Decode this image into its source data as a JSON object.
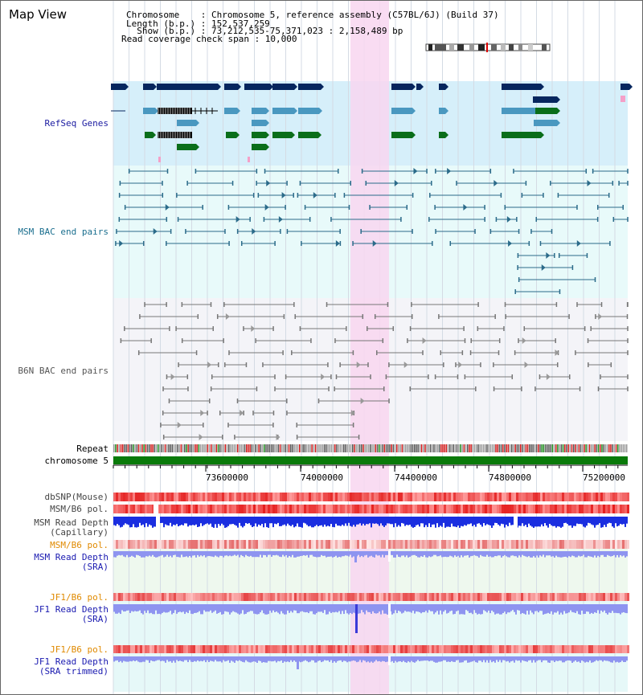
{
  "view": {
    "title": "Map View"
  },
  "info": {
    "chromosome": "Chromosome    : Chromosome 5, reference assembly (C57BL/6J) (Build 37)",
    "length": "Length (b.p.) : 152,537,259",
    "show": "  Show (b.p.) : 73,212,535-75,371,023 : 2,158,489 bp",
    "coverage": "Read coverage check span : 10,000"
  },
  "tracks": {
    "refseq": "RefSeq Genes",
    "msm_bac": "MSM BAC end pairs",
    "b6n_bac": "B6N BAC end pairs",
    "repeat": "Repeat",
    "chromosome": "chromosome 5",
    "dbsnp": "dbSNP(Mouse)",
    "msm_b6_pol": "MSM/B6 pol.",
    "msm_depth_cap1": "MSM Read Depth",
    "msm_depth_cap2": "(Capillary)",
    "msm_b6_pol2": "MSM/B6 pol.",
    "msm_depth_sra1": "MSM Read Depth",
    "msm_depth_sra2": "(SRA)",
    "jf1_pol": "JF1/B6 pol.",
    "jf1_depth1": "JF1 Read Depth",
    "jf1_depth2": "(SRA)",
    "jf1_pol2": "JF1/B6 pol.",
    "jf1_trim1": "JF1 Read Depth",
    "jf1_trim2": "(SRA trimmed)"
  },
  "axis": {
    "ticks": [
      "73600000",
      "74000000",
      "74400000",
      "74800000",
      "75200000"
    ]
  },
  "colors": {
    "refseq_bg": "#d6effa",
    "bac_bg": "#e8fafa",
    "b6n_bg": "#f4f4f8",
    "highlight": "#f8d6f0",
    "chrom": "#0a7a0a",
    "gene_dark": "#06265e",
    "gene_mid": "#4a98c0",
    "gene_green": "#0a6e1a",
    "msm_line": "#2b6b8a",
    "b6n_line": "#777777",
    "depth_blue": "#1a2ee0",
    "depth_light": "#8e94f0",
    "pol_red": "#e83838"
  }
}
